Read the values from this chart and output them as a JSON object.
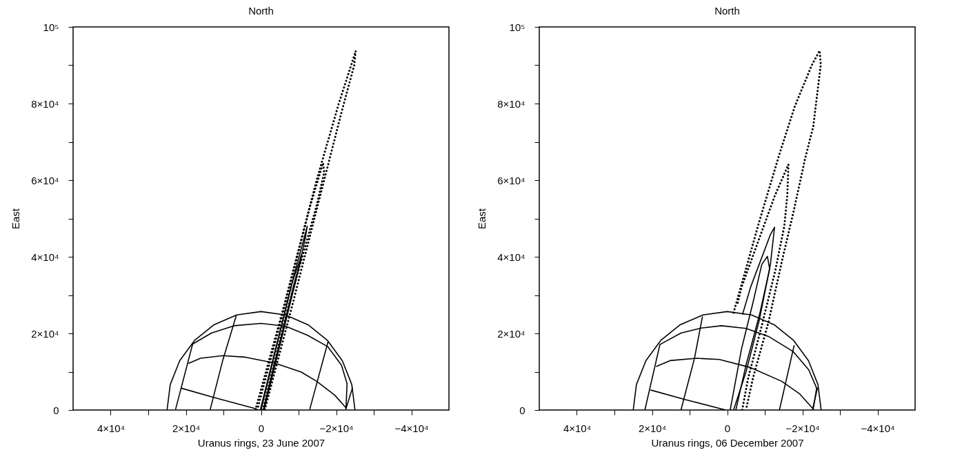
{
  "chart_data": [
    {
      "type": "line",
      "title": "North",
      "xlabel": "Uranus rings, 23 June 2007",
      "ylabel": "East",
      "xlim": [
        50000,
        -50000
      ],
      "ylim": [
        0,
        100000
      ],
      "xticks": [
        {
          "value": 40000,
          "label": "4×10⁴"
        },
        {
          "value": 30000,
          "label": null
        },
        {
          "value": 20000,
          "label": "2×10⁴"
        },
        {
          "value": 10000,
          "label": null
        },
        0,
        {
          "value": -10000,
          "label": null
        },
        {
          "value": -20000,
          "label": "−2×10⁴"
        },
        {
          "value": -30000,
          "label": null
        },
        {
          "value": -40000,
          "label": "−4×10⁴"
        }
      ],
      "yticks": [
        0,
        {
          "value": 10000,
          "label": null
        },
        {
          "value": 20000,
          "label": "2×10⁴"
        },
        {
          "value": 30000,
          "label": null
        },
        {
          "value": 40000,
          "label": "4×10⁴"
        },
        {
          "value": 50000,
          "label": null
        },
        {
          "value": 60000,
          "label": "6×10⁴"
        },
        {
          "value": 70000,
          "label": null
        },
        {
          "value": 80000,
          "label": "8×10⁴"
        },
        {
          "value": 90000,
          "label": null
        },
        {
          "value": 100000,
          "label": "10⁵"
        }
      ],
      "series": [
        {
          "color": "#000000",
          "line_style": "solid",
          "x": [
            25000,
            24150,
            21650,
            17680,
            12500,
            6470,
            0,
            -6470,
            -12500,
            -17680,
            -21650,
            -24150,
            -25000
          ],
          "values": [
            0,
            6650,
            12850,
            18170,
            22260,
            24820,
            25700,
            24820,
            22260,
            18170,
            12850,
            6650,
            0
          ]
        },
        {
          "color": "#000000",
          "line_style": "solid",
          "x": [
            18200,
            13200,
            7200,
            0,
            -6500,
            -12400,
            -17800,
            -21400,
            -22900,
            -22600
          ],
          "values": [
            17200,
            20100,
            22000,
            22600,
            21900,
            19500,
            16500,
            11700,
            6900,
            300
          ]
        },
        {
          "color": "#000000",
          "line_style": "solid",
          "x": [
            19200,
            16100,
            10200,
            4200,
            -3500,
            -10700,
            -14800,
            -19600,
            -22600
          ],
          "values": [
            12200,
            13500,
            14200,
            13800,
            12300,
            9900,
            7500,
            3900,
            600
          ]
        },
        {
          "color": "#000000",
          "line_style": "solid",
          "x": [
            21200,
            12600,
            1300
          ],
          "values": [
            5700,
            3300,
            300
          ]
        },
        {
          "color": "#000000",
          "line_style": "solid",
          "x": [
            18200,
            22700
          ],
          "values": [
            17200,
            300
          ]
        },
        {
          "color": "#000000",
          "line_style": "solid",
          "x": [
            6600,
            10200,
            13500
          ],
          "values": [
            24600,
            12900,
            200
          ]
        },
        {
          "color": "#000000",
          "line_style": "solid",
          "x": [
            -17800,
            -13000
          ],
          "values": [
            17700,
            300
          ]
        },
        {
          "color": "#000000",
          "line_style": "solid",
          "x": [
            -24300,
            -22600
          ],
          "values": [
            5700,
            300
          ]
        },
        {
          "color": "#000000",
          "line_style": "solid",
          "x": [
            0,
            -3000,
            -6000,
            -9000,
            -11500,
            -12300,
            -11800,
            -9800,
            -6800,
            -3800,
            -800
          ],
          "values": [
            0,
            12000,
            24000,
            36000,
            45000,
            48000,
            45000,
            36000,
            24000,
            12000,
            0
          ]
        },
        {
          "color": "#000000",
          "line_style": "solid",
          "x": [
            200,
            -2600,
            -5400,
            -8200,
            -10300,
            -10700,
            -10600,
            -8800,
            -6100,
            -3300,
            -600
          ],
          "values": [
            0,
            11000,
            22000,
            33000,
            39000,
            40500,
            39000,
            33000,
            22000,
            11000,
            0
          ]
        },
        {
          "color": "#000000",
          "line_style": "dotted",
          "x": [
            1500,
            -5800,
            -14800,
            -20700,
            -25200,
            -24800,
            -21500,
            -16800,
            -8500,
            -1000
          ],
          "values": [
            0,
            26000,
            60000,
            80000,
            93700,
            90000,
            78000,
            60000,
            28000,
            0
          ]
        },
        {
          "color": "#000000",
          "line_style": "dotted",
          "x": [
            1000,
            -6000,
            -13000,
            -16500,
            -16800,
            -14700,
            -7000,
            -500
          ],
          "values": [
            0,
            26000,
            53000,
            64500,
            62000,
            53000,
            26000,
            0
          ]
        }
      ]
    },
    {
      "type": "line",
      "title": "North",
      "xlabel": "Uranus rings, 06 December 2007",
      "ylabel": "East",
      "xlim": [
        50000,
        -50000
      ],
      "ylim": [
        0,
        100000
      ],
      "xticks": [
        {
          "value": 40000,
          "label": "4×10⁴"
        },
        {
          "value": 30000,
          "label": null
        },
        {
          "value": 20000,
          "label": "2×10⁴"
        },
        {
          "value": 10000,
          "label": null
        },
        0,
        {
          "value": -10000,
          "label": null
        },
        {
          "value": -20000,
          "label": "−2×10⁴"
        },
        {
          "value": -30000,
          "label": null
        },
        {
          "value": -40000,
          "label": "−4×10⁴"
        }
      ],
      "yticks": [
        0,
        {
          "value": 10000,
          "label": null
        },
        {
          "value": 20000,
          "label": "2×10⁴"
        },
        {
          "value": 30000,
          "label": null
        },
        {
          "value": 40000,
          "label": "4×10⁴"
        },
        {
          "value": 50000,
          "label": null
        },
        {
          "value": 60000,
          "label": "6×10⁴"
        },
        {
          "value": 70000,
          "label": null
        },
        {
          "value": 80000,
          "label": "8×10⁴"
        },
        {
          "value": 90000,
          "label": null
        },
        {
          "value": 100000,
          "label": "10⁵"
        }
      ],
      "series": [
        {
          "color": "#000000",
          "line_style": "solid",
          "x": [
            25000,
            24150,
            21650,
            17680,
            12500,
            6470,
            0,
            -6470,
            -12500,
            -17680,
            -21650,
            -24150,
            -25000
          ],
          "values": [
            0,
            6650,
            12850,
            18170,
            22260,
            24820,
            25700,
            24820,
            22260,
            18170,
            12850,
            6650,
            0
          ]
        },
        {
          "color": "#000000",
          "line_style": "solid",
          "x": [
            17900,
            12300,
            6900,
            1500,
            -5000,
            -11000,
            -17500,
            -21700,
            -23800,
            -22900
          ],
          "values": [
            17100,
            20100,
            21400,
            22000,
            21300,
            19200,
            15300,
            10500,
            5700,
            300
          ]
        },
        {
          "color": "#000000",
          "line_style": "solid",
          "x": [
            18800,
            15200,
            8100,
            2100,
            -6200,
            -14500,
            -19300,
            -22600
          ],
          "values": [
            11400,
            12900,
            13500,
            13200,
            11100,
            7500,
            4200,
            600
          ]
        },
        {
          "color": "#000000",
          "line_style": "solid",
          "x": [
            20300,
            11100,
            400
          ],
          "values": [
            5200,
            2700,
            0
          ]
        },
        {
          "color": "#000000",
          "line_style": "solid",
          "x": [
            17900,
            21900
          ],
          "values": [
            17100,
            0
          ]
        },
        {
          "color": "#000000",
          "line_style": "solid",
          "x": [
            6600,
            8700,
            12300
          ],
          "values": [
            24300,
            13500,
            0
          ]
        },
        {
          "color": "#000000",
          "line_style": "solid",
          "x": [
            -17800,
            -13900
          ],
          "values": [
            16800,
            0
          ]
        },
        {
          "color": "#000000",
          "line_style": "solid",
          "x": [
            -24000,
            -22700
          ],
          "values": [
            5700,
            0
          ]
        },
        {
          "color": "#000000",
          "line_style": "solid",
          "x": [
            -4100,
            -6200,
            -9200,
            -11500,
            -12600,
            -11500,
            -8600,
            -5000,
            -1700
          ],
          "values": [
            25000,
            32000,
            39800,
            45800,
            47700,
            38000,
            23700,
            9900,
            0
          ]
        },
        {
          "color": "#000000",
          "line_style": "solid",
          "x": [
            -800,
            -3800,
            -6800,
            -9200,
            -10700,
            -11300,
            -8600,
            -5000,
            -2300
          ],
          "values": [
            0,
            15900,
            27800,
            38000,
            40100,
            36800,
            24900,
            11700,
            0
          ]
        },
        {
          "color": "#000000",
          "line_style": "dotted",
          "x": [
            -1700,
            -8600,
            -13900,
            -18000,
            -22500,
            -24600,
            -24900,
            -22900,
            -20700,
            -17800,
            -14500,
            -11000,
            -6800,
            -5000
          ],
          "values": [
            25400,
            49400,
            66800,
            79300,
            90000,
            93800,
            90100,
            74000,
            65500,
            52400,
            38600,
            23000,
            8100,
            0
          ]
        },
        {
          "color": "#000000",
          "line_style": "dotted",
          "x": [
            -2800,
            -3800,
            -7500,
            -12700,
            -16300,
            -16000,
            -15200,
            -12700,
            -9200,
            -5500,
            -4000
          ],
          "values": [
            28000,
            32000,
            42000,
            56000,
            64100,
            56000,
            48000,
            36000,
            22000,
            8000,
            0
          ]
        }
      ]
    }
  ]
}
